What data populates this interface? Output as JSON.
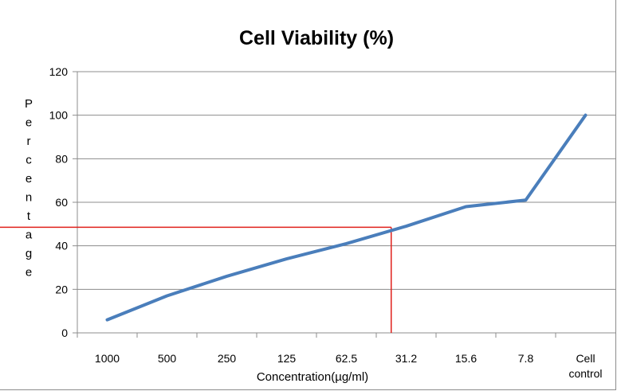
{
  "chart_data": {
    "type": "line",
    "title": "Cell Viability (%)",
    "xlabel": "Concentration(µg/ml)",
    "ylabel": "Percentage",
    "categories": [
      "1000",
      "500",
      "250",
      "125",
      "62.5",
      "31.2",
      "15.6",
      "7.8",
      "Cell control"
    ],
    "category_lines": [
      [
        "1000"
      ],
      [
        "500"
      ],
      [
        "250"
      ],
      [
        "125"
      ],
      [
        "62.5"
      ],
      [
        "31.2"
      ],
      [
        "15.6"
      ],
      [
        "7.8"
      ],
      [
        "Cell",
        "control"
      ]
    ],
    "series": [
      {
        "values": [
          6,
          17,
          26,
          34,
          41,
          49,
          58,
          61,
          100
        ],
        "color": "#4a7ebb"
      }
    ],
    "ylim": [
      0,
      120
    ],
    "yticks": [
      0,
      20,
      40,
      60,
      80,
      100,
      120
    ],
    "grid": true,
    "legend": "none",
    "reference_lines": {
      "y_value": 48.5,
      "x_category_position": 5.25,
      "color": "#e0201b"
    }
  }
}
